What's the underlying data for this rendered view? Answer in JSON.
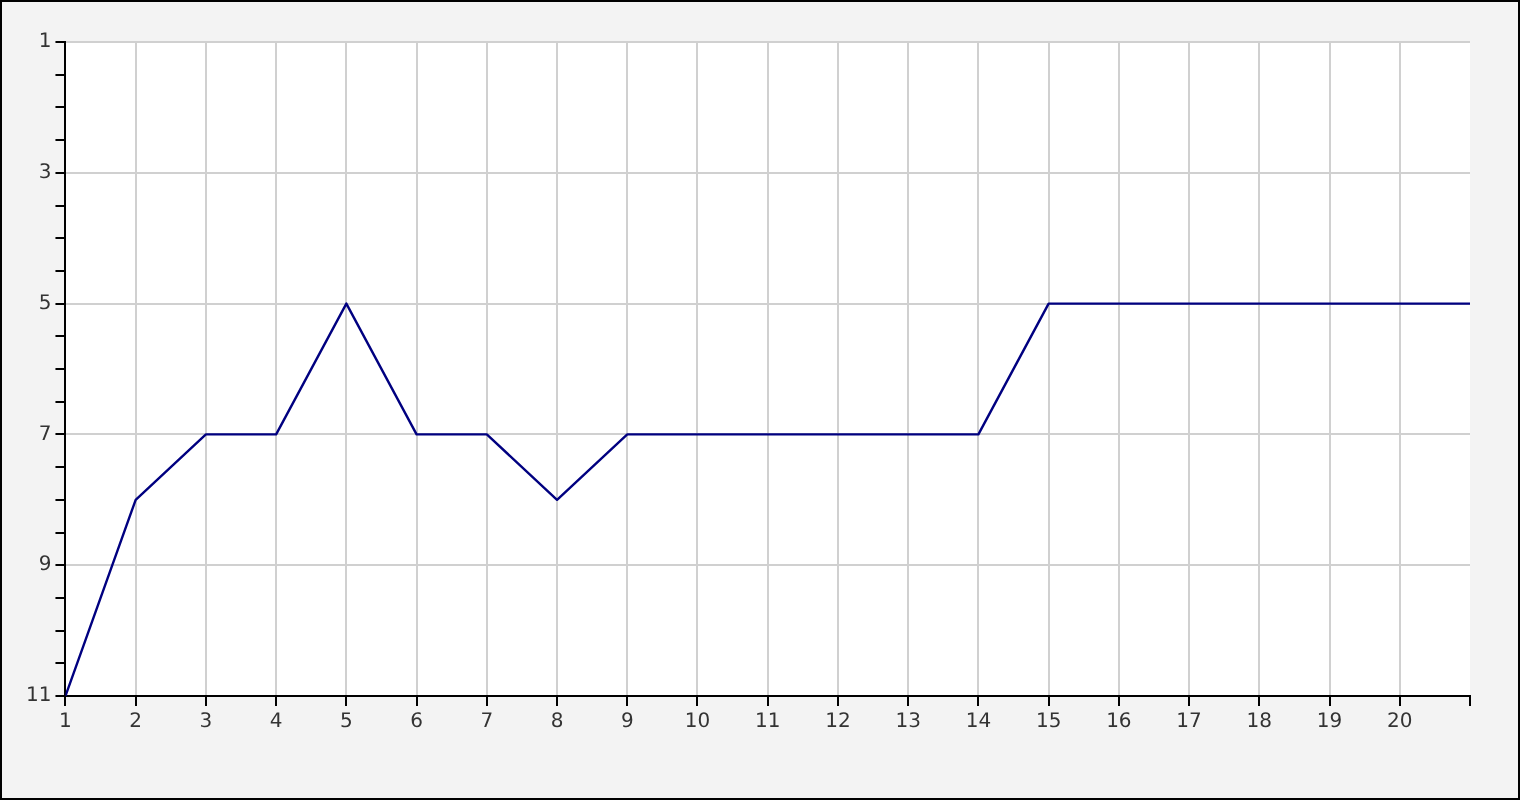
{
  "chart_data": {
    "type": "line",
    "x": [
      1,
      2,
      3,
      4,
      5,
      6,
      7,
      8,
      9,
      10,
      11,
      12,
      13,
      14,
      15,
      16,
      17,
      18,
      19,
      20,
      21
    ],
    "series": [
      {
        "color": "#000080",
        "values": [
          11,
          8,
          7,
          7,
          5,
          7,
          7,
          8,
          7,
          7,
          7,
          7,
          7,
          7,
          5,
          5,
          5,
          5,
          5,
          5,
          5
        ]
      }
    ],
    "xlim": [
      1,
      21
    ],
    "xticks": [
      1,
      2,
      3,
      4,
      5,
      6,
      7,
      8,
      9,
      10,
      11,
      12,
      13,
      14,
      15,
      16,
      17,
      18,
      19,
      20,
      {
        "value": 21,
        "label": null
      }
    ],
    "ylim": [
      11,
      1
    ],
    "yticks": [
      1,
      {
        "value": 1.5,
        "label": null
      },
      {
        "value": 2,
        "label": null
      },
      {
        "value": 2.5,
        "label": null
      },
      3,
      {
        "value": 3.5,
        "label": null
      },
      {
        "value": 4,
        "label": null
      },
      {
        "value": 4.5,
        "label": null
      },
      5,
      {
        "value": 5.5,
        "label": null
      },
      {
        "value": 6,
        "label": null
      },
      {
        "value": 6.5,
        "label": null
      },
      7,
      {
        "value": 7.5,
        "label": null
      },
      {
        "value": 8,
        "label": null
      },
      {
        "value": 8.5,
        "label": null
      },
      9,
      {
        "value": 9.5,
        "label": null
      },
      {
        "value": 10,
        "label": null
      },
      {
        "value": 10.5,
        "label": null
      },
      11
    ],
    "grid": true,
    "legend": false,
    "marker": "none",
    "line_style": "solid"
  }
}
